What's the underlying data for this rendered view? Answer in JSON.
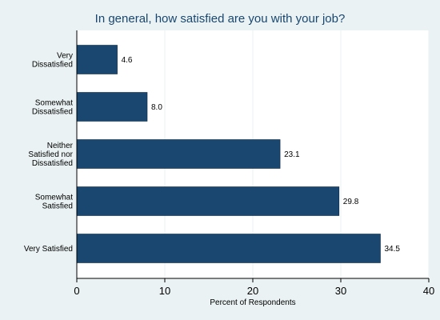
{
  "chart_data": {
    "type": "bar",
    "orientation": "horizontal",
    "title": "In general, how satisfied are you with your job?",
    "xlabel": "Percent of Respondents",
    "ylabel": "",
    "categories": [
      [
        "Very",
        "Dissatisfied"
      ],
      [
        "Somewhat",
        "Dissatisfied"
      ],
      [
        "Neither",
        "Satisfied nor",
        "Dissatisfied"
      ],
      [
        "Somewhat",
        "Satisfied"
      ],
      [
        "Very Satisfied"
      ]
    ],
    "values": [
      4.6,
      8.0,
      23.1,
      29.8,
      34.5
    ],
    "value_labels": [
      "4.6",
      "8.0",
      "23.1",
      "29.8",
      "34.5"
    ],
    "xlim": [
      0,
      40
    ],
    "xticks": [
      0,
      10,
      20,
      30,
      40
    ],
    "grid": true,
    "bar_color": "#1a476f",
    "plot_background": "#ffffff",
    "page_background": "#eaf2f3"
  }
}
